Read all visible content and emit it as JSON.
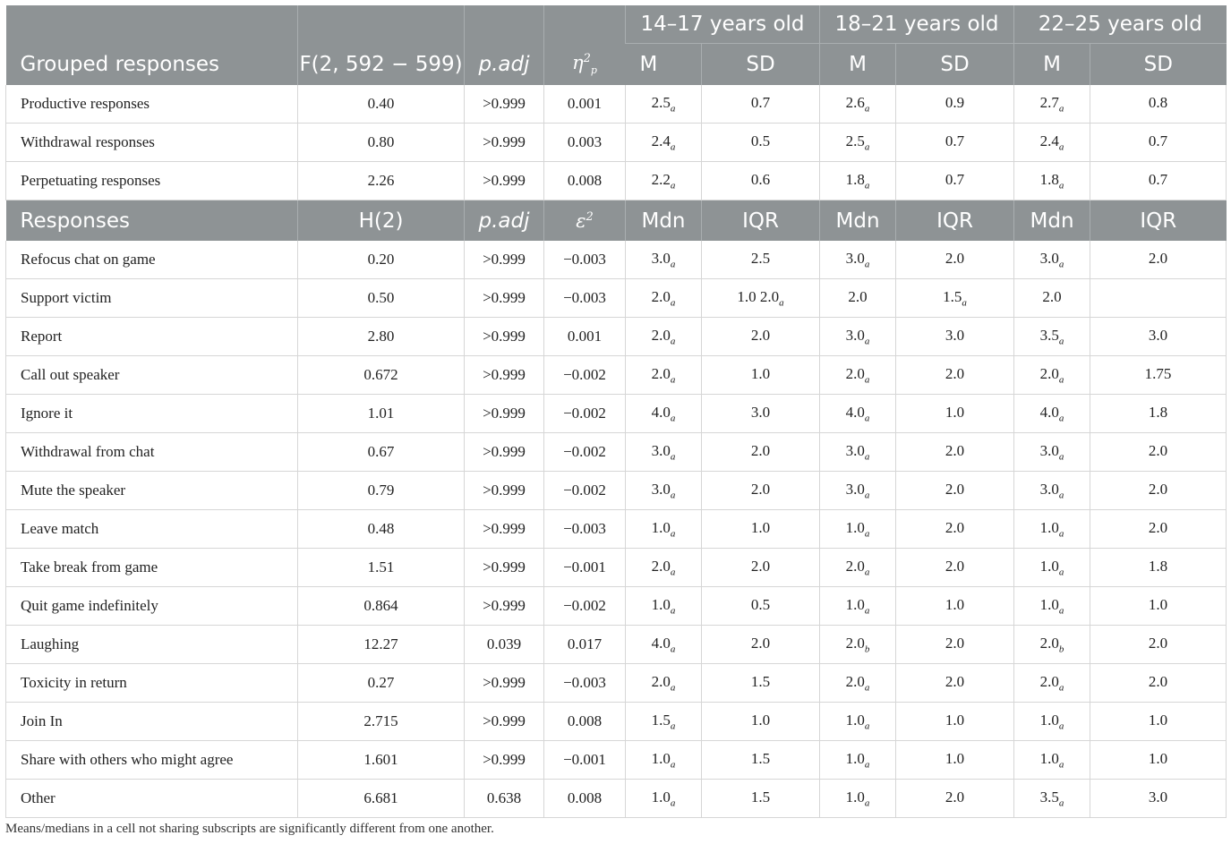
{
  "header1": {
    "col_group": "Grouped responses",
    "col_stat": "F(2, 592 − 599)",
    "col_padj": "p.adj",
    "col_eff": "η",
    "col_eff_sub": "p",
    "col_eff_sup": "2",
    "age_groups": [
      "14–17 years old",
      "18–21 years old",
      "22–25 years old"
    ],
    "sub_cols": [
      "M",
      "SD",
      "M",
      "SD",
      "M",
      "SD"
    ]
  },
  "grouped_rows": [
    {
      "label": "Productive responses",
      "stat": "0.40",
      "padj": ">0.999",
      "eff": "0.001",
      "cells": [
        [
          "2.5",
          "a"
        ],
        [
          "0.7",
          ""
        ],
        [
          "2.6",
          "a"
        ],
        [
          "0.9",
          ""
        ],
        [
          "2.7",
          "a"
        ],
        [
          "0.8",
          ""
        ]
      ]
    },
    {
      "label": "Withdrawal responses",
      "stat": "0.80",
      "padj": ">0.999",
      "eff": "0.003",
      "cells": [
        [
          "2.4",
          "a"
        ],
        [
          "0.5",
          ""
        ],
        [
          "2.5",
          "a"
        ],
        [
          "0.7",
          ""
        ],
        [
          "2.4",
          "a"
        ],
        [
          "0.7",
          ""
        ]
      ]
    },
    {
      "label": "Perpetuating responses",
      "stat": "2.26",
      "padj": ">0.999",
      "eff": "0.008",
      "cells": [
        [
          "2.2",
          "a"
        ],
        [
          "0.6",
          ""
        ],
        [
          "1.8",
          "a"
        ],
        [
          "0.7",
          ""
        ],
        [
          "1.8",
          "a"
        ],
        [
          "0.7",
          ""
        ]
      ]
    }
  ],
  "header2": {
    "col_group": "Responses",
    "col_stat": "H(2)",
    "col_padj": "p.adj",
    "col_eff": "ε",
    "col_eff_sup": "2",
    "sub_cols": [
      "Mdn",
      "IQR",
      "Mdn",
      "IQR",
      "Mdn",
      "IQR"
    ]
  },
  "response_rows": [
    {
      "label": "Refocus chat on game",
      "stat": "0.20",
      "padj": ">0.999",
      "eff": "−0.003",
      "cells": [
        [
          "3.0",
          "a"
        ],
        [
          "2.5",
          ""
        ],
        [
          "3.0",
          "a"
        ],
        [
          "2.0",
          ""
        ],
        [
          "3.0",
          "a"
        ],
        [
          "2.0",
          ""
        ]
      ]
    },
    {
      "label": "Support victim",
      "stat": "0.50",
      "padj": ">0.999",
      "eff": "−0.003",
      "cells": [
        [
          "2.0",
          "a"
        ],
        [
          "1.0 2.0",
          "a"
        ],
        [
          "2.0",
          ""
        ],
        [
          "1.5",
          "a"
        ],
        [
          "2.0",
          ""
        ],
        [
          "",
          ""
        ]
      ]
    },
    {
      "label": "Report",
      "stat": "2.80",
      "padj": ">0.999",
      "eff": "0.001",
      "cells": [
        [
          "2.0",
          "a"
        ],
        [
          "2.0",
          ""
        ],
        [
          "3.0",
          "a"
        ],
        [
          "3.0",
          ""
        ],
        [
          "3.5",
          "a"
        ],
        [
          "3.0",
          ""
        ]
      ]
    },
    {
      "label": "Call out speaker",
      "stat": "0.672",
      "padj": ">0.999",
      "eff": "−0.002",
      "cells": [
        [
          "2.0",
          "a"
        ],
        [
          "1.0",
          ""
        ],
        [
          "2.0",
          "a"
        ],
        [
          "2.0",
          ""
        ],
        [
          "2.0",
          "a"
        ],
        [
          "1.75",
          ""
        ]
      ]
    },
    {
      "label": "Ignore it",
      "stat": "1.01",
      "padj": ">0.999",
      "eff": "−0.002",
      "cells": [
        [
          "4.0",
          "a"
        ],
        [
          "3.0",
          ""
        ],
        [
          "4.0",
          "a"
        ],
        [
          "1.0",
          ""
        ],
        [
          "4.0",
          "a"
        ],
        [
          "1.8",
          ""
        ]
      ]
    },
    {
      "label": "Withdrawal from chat",
      "stat": "0.67",
      "padj": ">0.999",
      "eff": "−0.002",
      "cells": [
        [
          "3.0",
          "a"
        ],
        [
          "2.0",
          ""
        ],
        [
          "3.0",
          "a"
        ],
        [
          "2.0",
          ""
        ],
        [
          "3.0",
          "a"
        ],
        [
          "2.0",
          ""
        ]
      ]
    },
    {
      "label": "Mute the speaker",
      "stat": "0.79",
      "padj": ">0.999",
      "eff": "−0.002",
      "cells": [
        [
          "3.0",
          "a"
        ],
        [
          "2.0",
          ""
        ],
        [
          "3.0",
          "a"
        ],
        [
          "2.0",
          ""
        ],
        [
          "3.0",
          "a"
        ],
        [
          "2.0",
          ""
        ]
      ]
    },
    {
      "label": "Leave match",
      "stat": "0.48",
      "padj": ">0.999",
      "eff": "−0.003",
      "cells": [
        [
          "1.0",
          "a"
        ],
        [
          "1.0",
          ""
        ],
        [
          "1.0",
          "a"
        ],
        [
          "2.0",
          ""
        ],
        [
          "1.0",
          "a"
        ],
        [
          "2.0",
          ""
        ]
      ]
    },
    {
      "label": "Take break from game",
      "stat": "1.51",
      "padj": ">0.999",
      "eff": "−0.001",
      "cells": [
        [
          "2.0",
          "a"
        ],
        [
          "2.0",
          ""
        ],
        [
          "2.0",
          "a"
        ],
        [
          "2.0",
          ""
        ],
        [
          "1.0",
          "a"
        ],
        [
          "1.8",
          ""
        ]
      ]
    },
    {
      "label": "Quit game indefinitely",
      "stat": "0.864",
      "padj": ">0.999",
      "eff": "−0.002",
      "cells": [
        [
          "1.0",
          "a"
        ],
        [
          "0.5",
          ""
        ],
        [
          "1.0",
          "a"
        ],
        [
          "1.0",
          ""
        ],
        [
          "1.0",
          "a"
        ],
        [
          "1.0",
          ""
        ]
      ]
    },
    {
      "label": "Laughing",
      "stat": "12.27",
      "padj": "0.039",
      "eff": "0.017",
      "cells": [
        [
          "4.0",
          "a"
        ],
        [
          "2.0",
          ""
        ],
        [
          "2.0",
          "b"
        ],
        [
          "2.0",
          ""
        ],
        [
          "2.0",
          "b"
        ],
        [
          "2.0",
          ""
        ]
      ]
    },
    {
      "label": "Toxicity in return",
      "stat": "0.27",
      "padj": ">0.999",
      "eff": "−0.003",
      "cells": [
        [
          "2.0",
          "a"
        ],
        [
          "1.5",
          ""
        ],
        [
          "2.0",
          "a"
        ],
        [
          "2.0",
          ""
        ],
        [
          "2.0",
          "a"
        ],
        [
          "2.0",
          ""
        ]
      ]
    },
    {
      "label": "Join In",
      "stat": "2.715",
      "padj": ">0.999",
      "eff": "0.008",
      "cells": [
        [
          "1.5",
          "a"
        ],
        [
          "1.0",
          ""
        ],
        [
          "1.0",
          "a"
        ],
        [
          "1.0",
          ""
        ],
        [
          "1.0",
          "a"
        ],
        [
          "1.0",
          ""
        ]
      ]
    },
    {
      "label": "Share with others who might agree",
      "stat": "1.601",
      "padj": ">0.999",
      "eff": "−0.001",
      "cells": [
        [
          "1.0",
          "a"
        ],
        [
          "1.5",
          ""
        ],
        [
          "1.0",
          "a"
        ],
        [
          "1.0",
          ""
        ],
        [
          "1.0",
          "a"
        ],
        [
          "1.0",
          ""
        ]
      ]
    },
    {
      "label": "Other",
      "stat": "6.681",
      "padj": "0.638",
      "eff": "0.008",
      "cells": [
        [
          "1.0",
          "a"
        ],
        [
          "1.5",
          ""
        ],
        [
          "1.0",
          "a"
        ],
        [
          "2.0",
          ""
        ],
        [
          "3.5",
          "a"
        ],
        [
          "3.0",
          ""
        ]
      ]
    }
  ],
  "footnote": "Means/medians in a cell not sharing subscripts are significantly different from one another."
}
